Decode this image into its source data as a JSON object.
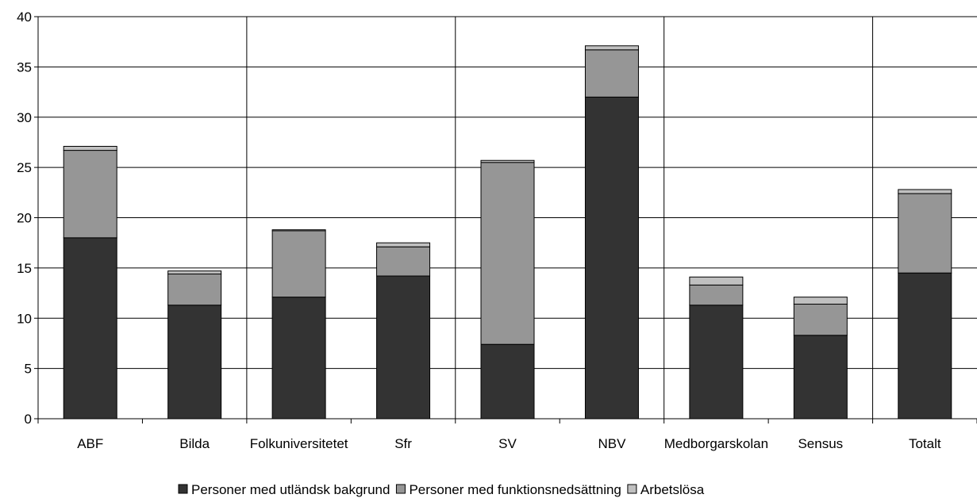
{
  "chart_data": {
    "type": "bar",
    "stacked": true,
    "categories": [
      "ABF",
      "Bilda",
      "Folkuniversitetet",
      "Sfr",
      "SV",
      "NBV",
      "Medborgarskolan",
      "Sensus",
      "Totalt"
    ],
    "series": [
      {
        "name": "Personer med utländsk bakgrund",
        "color": "#333333",
        "values": [
          18.0,
          11.3,
          12.1,
          14.2,
          7.4,
          32.0,
          11.3,
          8.3,
          14.5
        ]
      },
      {
        "name": "Personer med funktionsnedsättning",
        "color": "#969696",
        "values": [
          8.7,
          3.1,
          6.6,
          2.9,
          18.1,
          4.7,
          2.0,
          3.1,
          7.9
        ]
      },
      {
        "name": "Arbetslösa",
        "color": "#c0c0c0",
        "values": [
          0.4,
          0.3,
          0.1,
          0.4,
          0.2,
          0.4,
          0.8,
          0.7,
          0.4
        ]
      }
    ],
    "ylim": [
      0,
      40
    ],
    "yticks": [
      "0",
      "5",
      "10",
      "15",
      "20",
      "25",
      "30",
      "35",
      "40"
    ],
    "grid": true,
    "legend_position": "bottom"
  }
}
